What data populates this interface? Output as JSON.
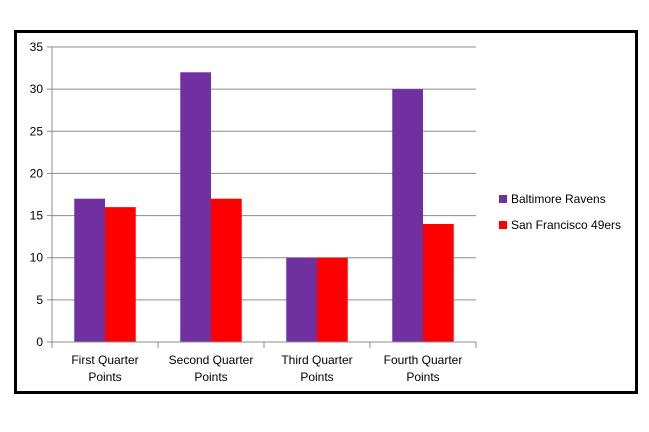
{
  "chart_data": {
    "type": "bar",
    "categories": [
      [
        "First Quarter",
        "Points"
      ],
      [
        "Second Quarter",
        "Points"
      ],
      [
        "Third Quarter",
        "Points"
      ],
      [
        "Fourth Quarter",
        "Points"
      ]
    ],
    "series": [
      {
        "name": "Baltimore Ravens",
        "color": "#7030a0",
        "values": [
          17,
          32,
          10,
          30
        ]
      },
      {
        "name": "San Francisco 49ers",
        "color": "#ff0000",
        "values": [
          16,
          17,
          10,
          14
        ]
      }
    ],
    "ylim": [
      0,
      35
    ],
    "yticks": [
      0,
      5,
      10,
      15,
      20,
      25,
      30,
      35
    ],
    "grid": true,
    "legend_position": "right"
  }
}
